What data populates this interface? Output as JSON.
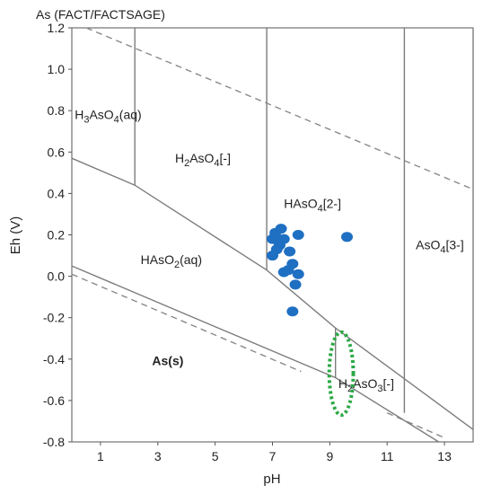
{
  "chart_data": {
    "type": "scatter",
    "title": "As (FACT/FACTSAGE)",
    "xlabel": "pH",
    "ylabel": "Eh (V)",
    "xlim": [
      0,
      14
    ],
    "ylim": [
      -0.8,
      1.2
    ],
    "x_ticks": [
      1,
      3,
      5,
      7,
      9,
      11,
      13
    ],
    "y_ticks": [
      1.2,
      1.0,
      0.8,
      0.6,
      0.4,
      0.2,
      0.0,
      -0.2,
      -0.4,
      -0.6,
      -0.8
    ],
    "x_tick_labels": [
      "1",
      "3",
      "5",
      "7",
      "9",
      "11",
      "13"
    ],
    "y_tick_labels": [
      "1.2",
      "1.0",
      "0.8",
      "0.6",
      "0.4",
      "0.2",
      "0.0",
      "-0.2",
      "-0.4",
      "-0.6",
      "-0.8"
    ],
    "grid": false,
    "region_labels": [
      {
        "id": "h3aso4",
        "parts": [
          [
            "H",
            false
          ],
          [
            "3",
            true
          ],
          [
            "AsO",
            false
          ],
          [
            "4",
            true
          ],
          [
            "(aq)",
            false
          ]
        ],
        "pos": [
          0.1,
          0.76
        ]
      },
      {
        "id": "h2aso4",
        "parts": [
          [
            "H",
            false
          ],
          [
            "2",
            true
          ],
          [
            "AsO",
            false
          ],
          [
            "4",
            true
          ],
          [
            "[-]",
            false
          ]
        ],
        "pos": [
          3.6,
          0.55
        ]
      },
      {
        "id": "haso4",
        "parts": [
          [
            "HAsO",
            false
          ],
          [
            "4",
            true
          ],
          [
            "[2-]",
            false
          ]
        ],
        "pos": [
          7.4,
          0.33
        ]
      },
      {
        "id": "aso4",
        "parts": [
          [
            "AsO",
            false
          ],
          [
            "4",
            true
          ],
          [
            "[3-]",
            false
          ]
        ],
        "pos": [
          12.0,
          0.13
        ]
      },
      {
        "id": "haso2",
        "parts": [
          [
            "HAsO",
            false
          ],
          [
            "2",
            true
          ],
          [
            "(aq)",
            false
          ]
        ],
        "pos": [
          2.4,
          0.06
        ]
      },
      {
        "id": "ass",
        "parts": [
          [
            "As(s)",
            false
          ]
        ],
        "pos": [
          2.8,
          -0.43
        ],
        "bold": true
      },
      {
        "id": "h2aso3",
        "parts": [
          [
            "H",
            false
          ],
          [
            "2",
            true
          ],
          [
            "AsO",
            false
          ],
          [
            "3",
            true
          ],
          [
            "[-]",
            false
          ]
        ],
        "pos": [
          9.3,
          -0.54
        ]
      }
    ],
    "boundaries": [
      [
        [
          0.0,
          0.57
        ],
        [
          2.2,
          0.44
        ],
        [
          6.8,
          0.03
        ],
        [
          9.2,
          -0.25
        ],
        [
          14.0,
          -0.74
        ]
      ],
      [
        [
          2.2,
          0.44
        ],
        [
          2.2,
          1.2
        ]
      ],
      [
        [
          6.8,
          0.03
        ],
        [
          6.8,
          1.2
        ]
      ],
      [
        [
          11.6,
          -0.66
        ],
        [
          11.6,
          1.2
        ]
      ],
      [
        [
          14.0,
          -0.74
        ],
        [
          14.0,
          1.2
        ]
      ],
      [
        [
          0.0,
          0.05
        ],
        [
          9.2,
          -0.49
        ],
        [
          12.8,
          -0.8
        ]
      ],
      [
        [
          9.2,
          -0.25
        ],
        [
          9.2,
          -0.49
        ]
      ]
    ],
    "water_lines": [
      [
        [
          0.5,
          1.2
        ],
        [
          14.0,
          0.42
        ]
      ],
      [
        [
          0.0,
          0.01
        ],
        [
          8.0,
          -0.46
        ]
      ],
      [
        [
          11.0,
          -0.66
        ],
        [
          13.0,
          -0.78
        ]
      ]
    ],
    "series": [
      {
        "color": "#1f6fc2",
        "points": [
          [
            7.3,
            0.23
          ],
          [
            7.1,
            0.21
          ],
          [
            7.0,
            0.18
          ],
          [
            7.2,
            0.17
          ],
          [
            7.4,
            0.18
          ],
          [
            7.25,
            0.15
          ],
          [
            7.15,
            0.13
          ],
          [
            7.6,
            0.12
          ],
          [
            7.9,
            0.2
          ],
          [
            7.0,
            0.1
          ],
          [
            7.7,
            0.06
          ],
          [
            7.55,
            0.03
          ],
          [
            7.4,
            0.02
          ],
          [
            7.9,
            0.01
          ],
          [
            7.8,
            -0.04
          ],
          [
            9.6,
            0.19
          ],
          [
            7.7,
            -0.17
          ]
        ]
      }
    ],
    "ellipse": {
      "center": [
        9.4,
        -0.47
      ],
      "rx": 0.42,
      "ry": 0.2,
      "color": "#2aa845"
    }
  }
}
